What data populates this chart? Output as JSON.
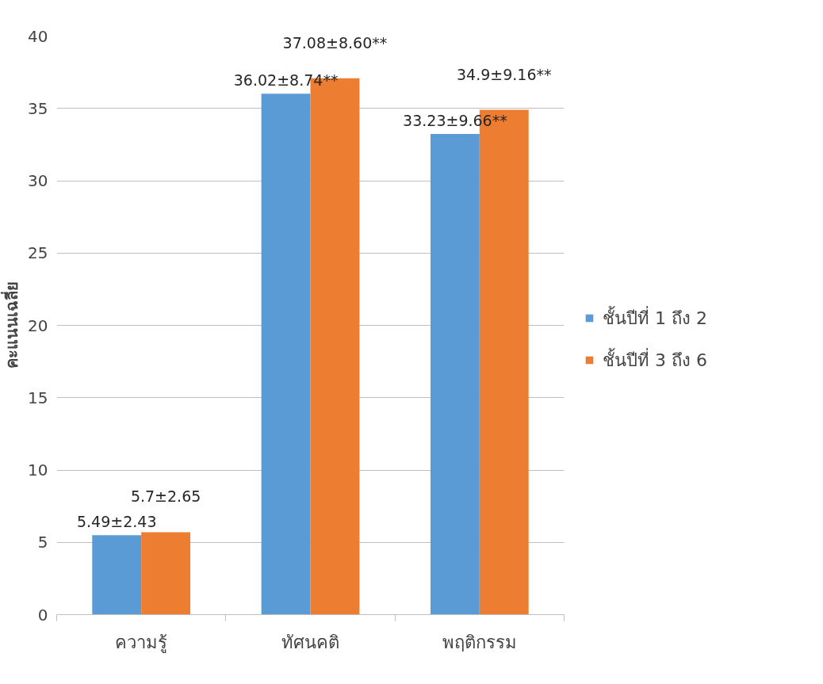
{
  "chart_data": {
    "type": "bar",
    "ylabel": "คะแนนเฉลี่ย",
    "categories": [
      "ความรู้",
      "ทัศนคติ",
      "พฤติกรรม"
    ],
    "series": [
      {
        "name": "ชั้นปีที่ 1 ถึง 2",
        "color": "#5b9bd5",
        "values": [
          5.49,
          36.02,
          33.23
        ],
        "value_labels": [
          "5.49±2.43",
          "36.02±8.74**",
          "33.23±9.66**"
        ]
      },
      {
        "name": "ชั้นปีที่ 3 ถึง 6",
        "color": "#ed7d31",
        "values": [
          5.7,
          37.08,
          34.9
        ],
        "value_labels": [
          "5.7±2.65",
          "37.08±8.60**",
          "34.9±9.16**"
        ]
      }
    ],
    "ylim": [
      0,
      40
    ],
    "yticks": [
      0,
      5,
      10,
      15,
      20,
      25,
      30,
      35,
      40
    ],
    "grid": "y",
    "legend": "right"
  }
}
